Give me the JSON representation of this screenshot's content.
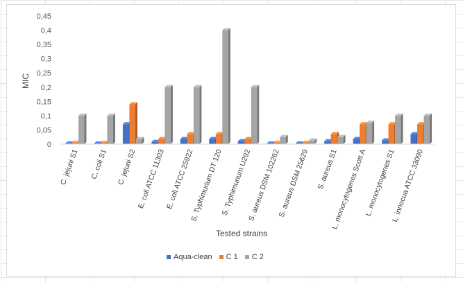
{
  "chart_data": {
    "type": "bar",
    "ylabel": "MIC",
    "xlabel": "Tested strains",
    "ylim": [
      0,
      0.45
    ],
    "yticks": [
      "0",
      "0,05",
      "0,1",
      "0,15",
      "0,2",
      "0,25",
      "0,3",
      "0,35",
      "0,4",
      "0,45"
    ],
    "categories": [
      "C. jejuni S1",
      "C. coli S1",
      "C. jejuni S2",
      "E. coli ATCC 11303",
      "E. coli ATCC 25922",
      "S. Typhimurium DT 120",
      "S. Typhimurium U292",
      "S. aureus DSM 102262",
      "S. aureus DSM 25629",
      "S. aureus S1",
      "L. monocytogenes Scott A",
      "L. monocytogenes S1",
      "L. innocua ATCC 33090"
    ],
    "series": [
      {
        "name": "Aqua-clean",
        "color": "#4472C4",
        "values": [
          0.002,
          0.002,
          0.07,
          0.008,
          0.018,
          0.018,
          0.01,
          0.002,
          0.002,
          0.01,
          0.018,
          0.013,
          0.035
        ]
      },
      {
        "name": "C 1",
        "color": "#ED7D31",
        "values": [
          0.004,
          0.004,
          0.14,
          0.018,
          0.035,
          0.035,
          0.018,
          0.004,
          0.004,
          0.035,
          0.07,
          0.07,
          0.07
        ]
      },
      {
        "name": "C 2",
        "color": "#A5A5A5",
        "values": [
          0.1,
          0.1,
          0.018,
          0.2,
          0.2,
          0.4,
          0.2,
          0.025,
          0.013,
          0.025,
          0.075,
          0.1,
          0.1
        ]
      }
    ],
    "grid": false,
    "legend_position": "bottom"
  }
}
